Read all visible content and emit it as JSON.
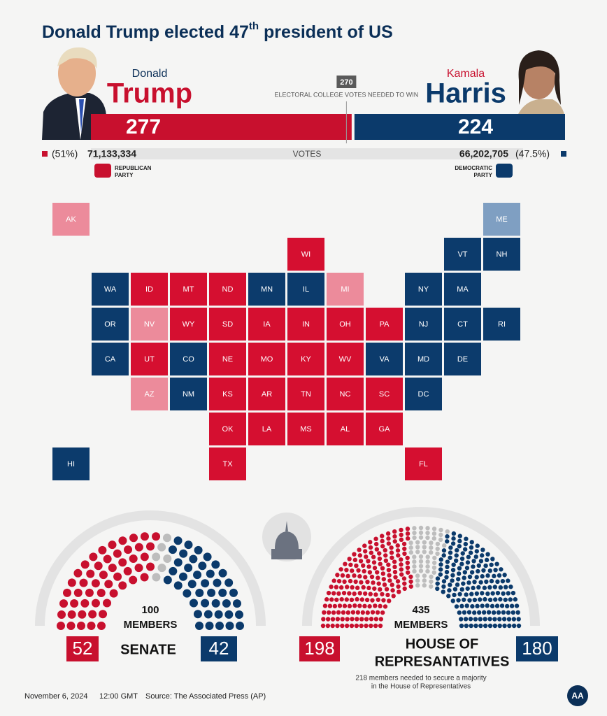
{
  "title": {
    "main": "Donald Trump elected 47",
    "sup": "th",
    "end": " president of US"
  },
  "threshold": {
    "value": 270,
    "label": "ELECTORAL COLLEGE VOTES NEEDED TO WIN"
  },
  "votes_label": "VOTES",
  "candidates": [
    {
      "first_name": "Donald",
      "last_name": "Trump",
      "electoral_votes": 277,
      "vote_share": "(51%)",
      "popular_votes": "71,133,334",
      "party": [
        "REPUBLICAN",
        "PARTY"
      ],
      "color": "#c8102e"
    },
    {
      "first_name": "Kamala",
      "last_name": "Harris",
      "electoral_votes": 224,
      "vote_share": "(47.5%)",
      "popular_votes": "66,202,705",
      "party": [
        "DEMOCRATIC",
        "PARTY"
      ],
      "color": "#0b3a6b"
    }
  ],
  "map": {
    "colors": {
      "R": "#d50f30",
      "D": "#0c3b6c",
      "R-lean": "#ec8b9b",
      "D-lean": "#7f9fc2"
    },
    "states": [
      {
        "label": "AK",
        "result": "R-lean"
      },
      {
        "label": "ME",
        "result": "D-lean"
      },
      {
        "label": "WI",
        "result": "R"
      },
      {
        "label": "VT",
        "result": "D"
      },
      {
        "label": "NH",
        "result": "D"
      },
      {
        "label": "WA",
        "result": "D"
      },
      {
        "label": "ID",
        "result": "R"
      },
      {
        "label": "MT",
        "result": "R"
      },
      {
        "label": "ND",
        "result": "R"
      },
      {
        "label": "MN",
        "result": "D"
      },
      {
        "label": "IL",
        "result": "D"
      },
      {
        "label": "MI",
        "result": "R-lean"
      },
      {
        "label": "NY",
        "result": "D"
      },
      {
        "label": "MA",
        "result": "D"
      },
      {
        "label": "OR",
        "result": "D"
      },
      {
        "label": "NV",
        "result": "R-lean"
      },
      {
        "label": "WY",
        "result": "R"
      },
      {
        "label": "SD",
        "result": "R"
      },
      {
        "label": "IA",
        "result": "R"
      },
      {
        "label": "IN",
        "result": "R"
      },
      {
        "label": "OH",
        "result": "R"
      },
      {
        "label": "PA",
        "result": "R"
      },
      {
        "label": "NJ",
        "result": "D"
      },
      {
        "label": "CT",
        "result": "D"
      },
      {
        "label": "RI",
        "result": "D"
      },
      {
        "label": "CA",
        "result": "D"
      },
      {
        "label": "UT",
        "result": "R"
      },
      {
        "label": "CO",
        "result": "D"
      },
      {
        "label": "NE",
        "result": "R"
      },
      {
        "label": "MO",
        "result": "R"
      },
      {
        "label": "KY",
        "result": "R"
      },
      {
        "label": "WV",
        "result": "R"
      },
      {
        "label": "VA",
        "result": "D"
      },
      {
        "label": "MD",
        "result": "D"
      },
      {
        "label": "DE",
        "result": "D"
      },
      {
        "label": "AZ",
        "result": "R-lean"
      },
      {
        "label": "NM",
        "result": "D"
      },
      {
        "label": "KS",
        "result": "R"
      },
      {
        "label": "AR",
        "result": "R"
      },
      {
        "label": "TN",
        "result": "R"
      },
      {
        "label": "NC",
        "result": "R"
      },
      {
        "label": "SC",
        "result": "R"
      },
      {
        "label": "DC",
        "result": "D"
      },
      {
        "label": "OK",
        "result": "R"
      },
      {
        "label": "LA",
        "result": "R"
      },
      {
        "label": "MS",
        "result": "R"
      },
      {
        "label": "AL",
        "result": "R"
      },
      {
        "label": "GA",
        "result": "R"
      },
      {
        "label": "HI",
        "result": "D"
      },
      {
        "label": "TX",
        "result": "R"
      },
      {
        "label": "FL",
        "result": "R"
      }
    ]
  },
  "undecided_color": "#bdbdbd",
  "senate": {
    "total": 100,
    "members_label": "MEMBERS",
    "label": "SENATE",
    "republican": 52,
    "democrat": 42
  },
  "house": {
    "total": 435,
    "members_label": "MEMBERS",
    "label_lines": [
      "HOUSE OF",
      "REPRESANTATIVES"
    ],
    "republican": 198,
    "democrat": 180,
    "note_lines": [
      "218 members needed to secure a majority",
      "in the House of Representatives"
    ]
  },
  "footer": {
    "date": "November 6, 2024",
    "time": "12:00 GMT",
    "source": "Source: The Associated Press (AP)",
    "logo": "AA"
  }
}
